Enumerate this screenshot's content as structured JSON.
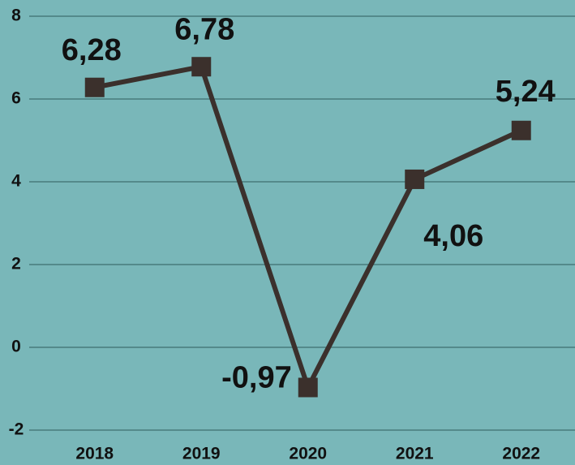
{
  "chart_data": {
    "type": "line",
    "categories": [
      "2018",
      "2019",
      "2020",
      "2021",
      "2022"
    ],
    "series": [
      {
        "name": null,
        "color": "#3b302c",
        "values": [
          6.28,
          6.78,
          -0.97,
          4.06,
          5.24
        ],
        "value_labels": [
          "6,28",
          "6,78",
          "-0,97",
          "4,06",
          "5,24"
        ]
      }
    ],
    "ylim": [
      -2,
      8
    ],
    "yticks": [
      -2,
      0,
      2,
      4,
      6,
      8
    ],
    "grid": true
  }
}
